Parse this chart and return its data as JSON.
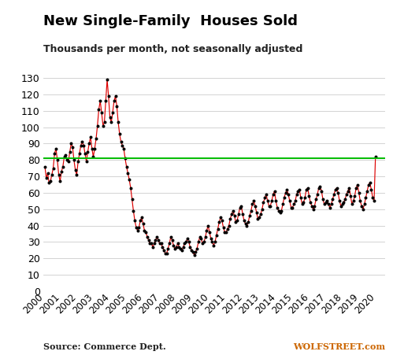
{
  "title": "New Single-Family  Houses Sold",
  "subtitle": "Thousands per month, not seasonally adjusted",
  "source_left": "Source: Commerce Dept.",
  "source_right": "WOLFSTREET.com",
  "ylim": [
    0,
    130
  ],
  "yticks": [
    0,
    10,
    20,
    30,
    40,
    50,
    60,
    70,
    80,
    90,
    100,
    110,
    120,
    130
  ],
  "hline_value": 81,
  "hline_color": "#00bb00",
  "line_color": "#dd0000",
  "dot_color": "#000000",
  "bg_color": "#ffffff",
  "grid_color": "#cccccc",
  "values": [
    76,
    69,
    72,
    66,
    67,
    71,
    75,
    84,
    87,
    80,
    71,
    67,
    73,
    76,
    82,
    83,
    80,
    79,
    85,
    90,
    88,
    80,
    74,
    71,
    79,
    84,
    89,
    91,
    89,
    84,
    79,
    85,
    90,
    94,
    87,
    82,
    87,
    93,
    101,
    111,
    116,
    109,
    101,
    103,
    116,
    129,
    119,
    106,
    103,
    109,
    116,
    119,
    113,
    103,
    96,
    91,
    89,
    87,
    81,
    76,
    72,
    68,
    63,
    56,
    49,
    43,
    39,
    37,
    39,
    43,
    45,
    41,
    37,
    36,
    33,
    31,
    29,
    29,
    27,
    29,
    31,
    33,
    31,
    29,
    29,
    27,
    25,
    23,
    23,
    26,
    29,
    33,
    31,
    28,
    26,
    27,
    29,
    27,
    26,
    25,
    27,
    29,
    30,
    32,
    30,
    27,
    25,
    24,
    22,
    24,
    26,
    30,
    33,
    32,
    29,
    30,
    33,
    37,
    40,
    36,
    32,
    30,
    28,
    30,
    34,
    38,
    42,
    45,
    43,
    39,
    36,
    36,
    38,
    40,
    44,
    47,
    49,
    46,
    42,
    43,
    47,
    51,
    52,
    47,
    43,
    41,
    40,
    42,
    46,
    49,
    53,
    55,
    52,
    48,
    44,
    45,
    47,
    50,
    54,
    57,
    59,
    55,
    52,
    52,
    55,
    59,
    61,
    55,
    51,
    49,
    48,
    49,
    53,
    57,
    60,
    62,
    59,
    55,
    51,
    51,
    53,
    55,
    59,
    61,
    62,
    57,
    53,
    54,
    57,
    62,
    63,
    58,
    54,
    52,
    50,
    52,
    56,
    59,
    63,
    64,
    61,
    56,
    53,
    54,
    55,
    53,
    51,
    53,
    56,
    59,
    62,
    63,
    60,
    55,
    52,
    53,
    54,
    56,
    59,
    61,
    63,
    58,
    53,
    55,
    58,
    63,
    65,
    60,
    55,
    52,
    50,
    53,
    57,
    61,
    65,
    66,
    62,
    57,
    55,
    82
  ],
  "start_year": 2000,
  "start_month": 1
}
